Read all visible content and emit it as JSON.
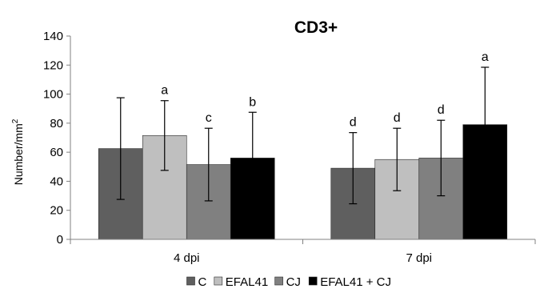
{
  "chart_data": {
    "type": "bar",
    "title": "CD3+",
    "ylabel": "Number/mm",
    "ylabel_superscript": "2",
    "xlabel": "",
    "ylim": [
      0,
      140
    ],
    "yticks": [
      0,
      20,
      40,
      60,
      80,
      100,
      120,
      140
    ],
    "grid": false,
    "legend_position": "bottom",
    "categories": [
      "4 dpi",
      "7 dpi"
    ],
    "series": [
      {
        "name": "C",
        "color": "#5f5f5f",
        "values": [
          62.5,
          49
        ],
        "error": [
          35,
          24.5
        ],
        "labels": [
          "",
          "d"
        ]
      },
      {
        "name": "EFAL41",
        "color": "#bfbfbf",
        "values": [
          71.5,
          55
        ],
        "error": [
          24,
          21.5
        ],
        "labels": [
          "a",
          "d"
        ]
      },
      {
        "name": "CJ",
        "color": "#808080",
        "values": [
          51.5,
          56
        ],
        "error": [
          25,
          26
        ],
        "labels": [
          "c",
          "d"
        ]
      },
      {
        "name": "EFAL41 + CJ",
        "color": "#000000",
        "values": [
          56,
          79
        ],
        "error": [
          31.5,
          39.5
        ],
        "labels": [
          "b",
          "a"
        ]
      }
    ]
  }
}
